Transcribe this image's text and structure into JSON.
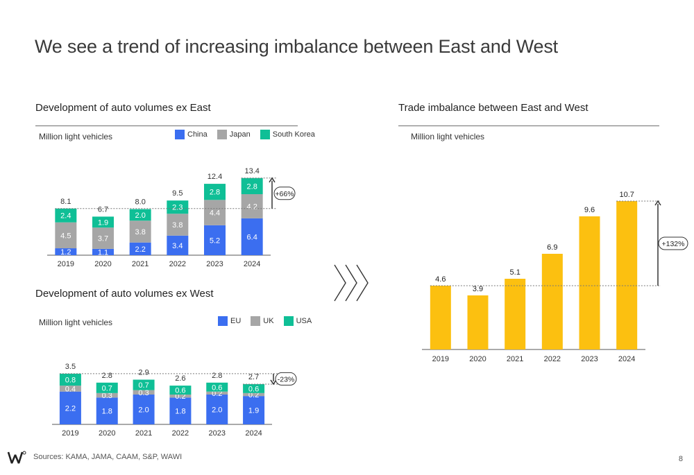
{
  "page": {
    "title": "We see a trend of increasing imbalance between East and West",
    "sources": "Sources: KAMA, JAMA, CAAM, S&P, WAWI",
    "page_number": "8"
  },
  "colors": {
    "china": "#3b6ef0",
    "japan": "#a6a6a6",
    "south_korea": "#0fbf96",
    "eu": "#3b6ef0",
    "uk": "#a6a6a6",
    "usa": "#0fbf96",
    "trade": "#fcc010"
  },
  "chart_data": [
    {
      "id": "east",
      "type": "bar",
      "stacked": true,
      "title": "Development of auto volumes ex East",
      "unit": "Million light vehicles",
      "categories": [
        "2019",
        "2020",
        "2021",
        "2022",
        "2023",
        "2024"
      ],
      "series": [
        {
          "name": "China",
          "values": [
            1.2,
            1.1,
            2.2,
            3.4,
            5.2,
            6.4
          ]
        },
        {
          "name": "Japan",
          "values": [
            4.5,
            3.7,
            3.8,
            3.8,
            4.4,
            4.2
          ]
        },
        {
          "name": "South Korea",
          "values": [
            2.4,
            1.9,
            2.0,
            2.3,
            2.8,
            2.8
          ]
        }
      ],
      "totals": [
        8.1,
        6.7,
        8.0,
        9.5,
        12.4,
        13.4
      ],
      "annotation": "+66%",
      "legend_position": "top-right"
    },
    {
      "id": "west",
      "type": "bar",
      "stacked": true,
      "title": "Development of auto volumes ex West",
      "unit": "Million light vehicles",
      "categories": [
        "2019",
        "2020",
        "2021",
        "2022",
        "2023",
        "2024"
      ],
      "series": [
        {
          "name": "EU",
          "values": [
            2.2,
            1.8,
            2.0,
            1.8,
            2.0,
            1.9
          ]
        },
        {
          "name": "UK",
          "values": [
            0.4,
            0.3,
            0.3,
            0.2,
            0.2,
            0.2
          ]
        },
        {
          "name": "USA",
          "values": [
            0.8,
            0.7,
            0.7,
            0.6,
            0.6,
            0.6
          ]
        }
      ],
      "totals": [
        3.5,
        2.8,
        2.9,
        2.6,
        2.8,
        2.7
      ],
      "annotation": "-23%",
      "legend_position": "top-right"
    },
    {
      "id": "trade",
      "type": "bar",
      "title": "Trade imbalance between East and West",
      "unit": "Million light vehicles",
      "categories": [
        "2019",
        "2020",
        "2021",
        "2022",
        "2023",
        "2024"
      ],
      "values": [
        4.6,
        3.9,
        5.1,
        6.9,
        9.6,
        10.7
      ],
      "annotation": "+132%"
    }
  ]
}
